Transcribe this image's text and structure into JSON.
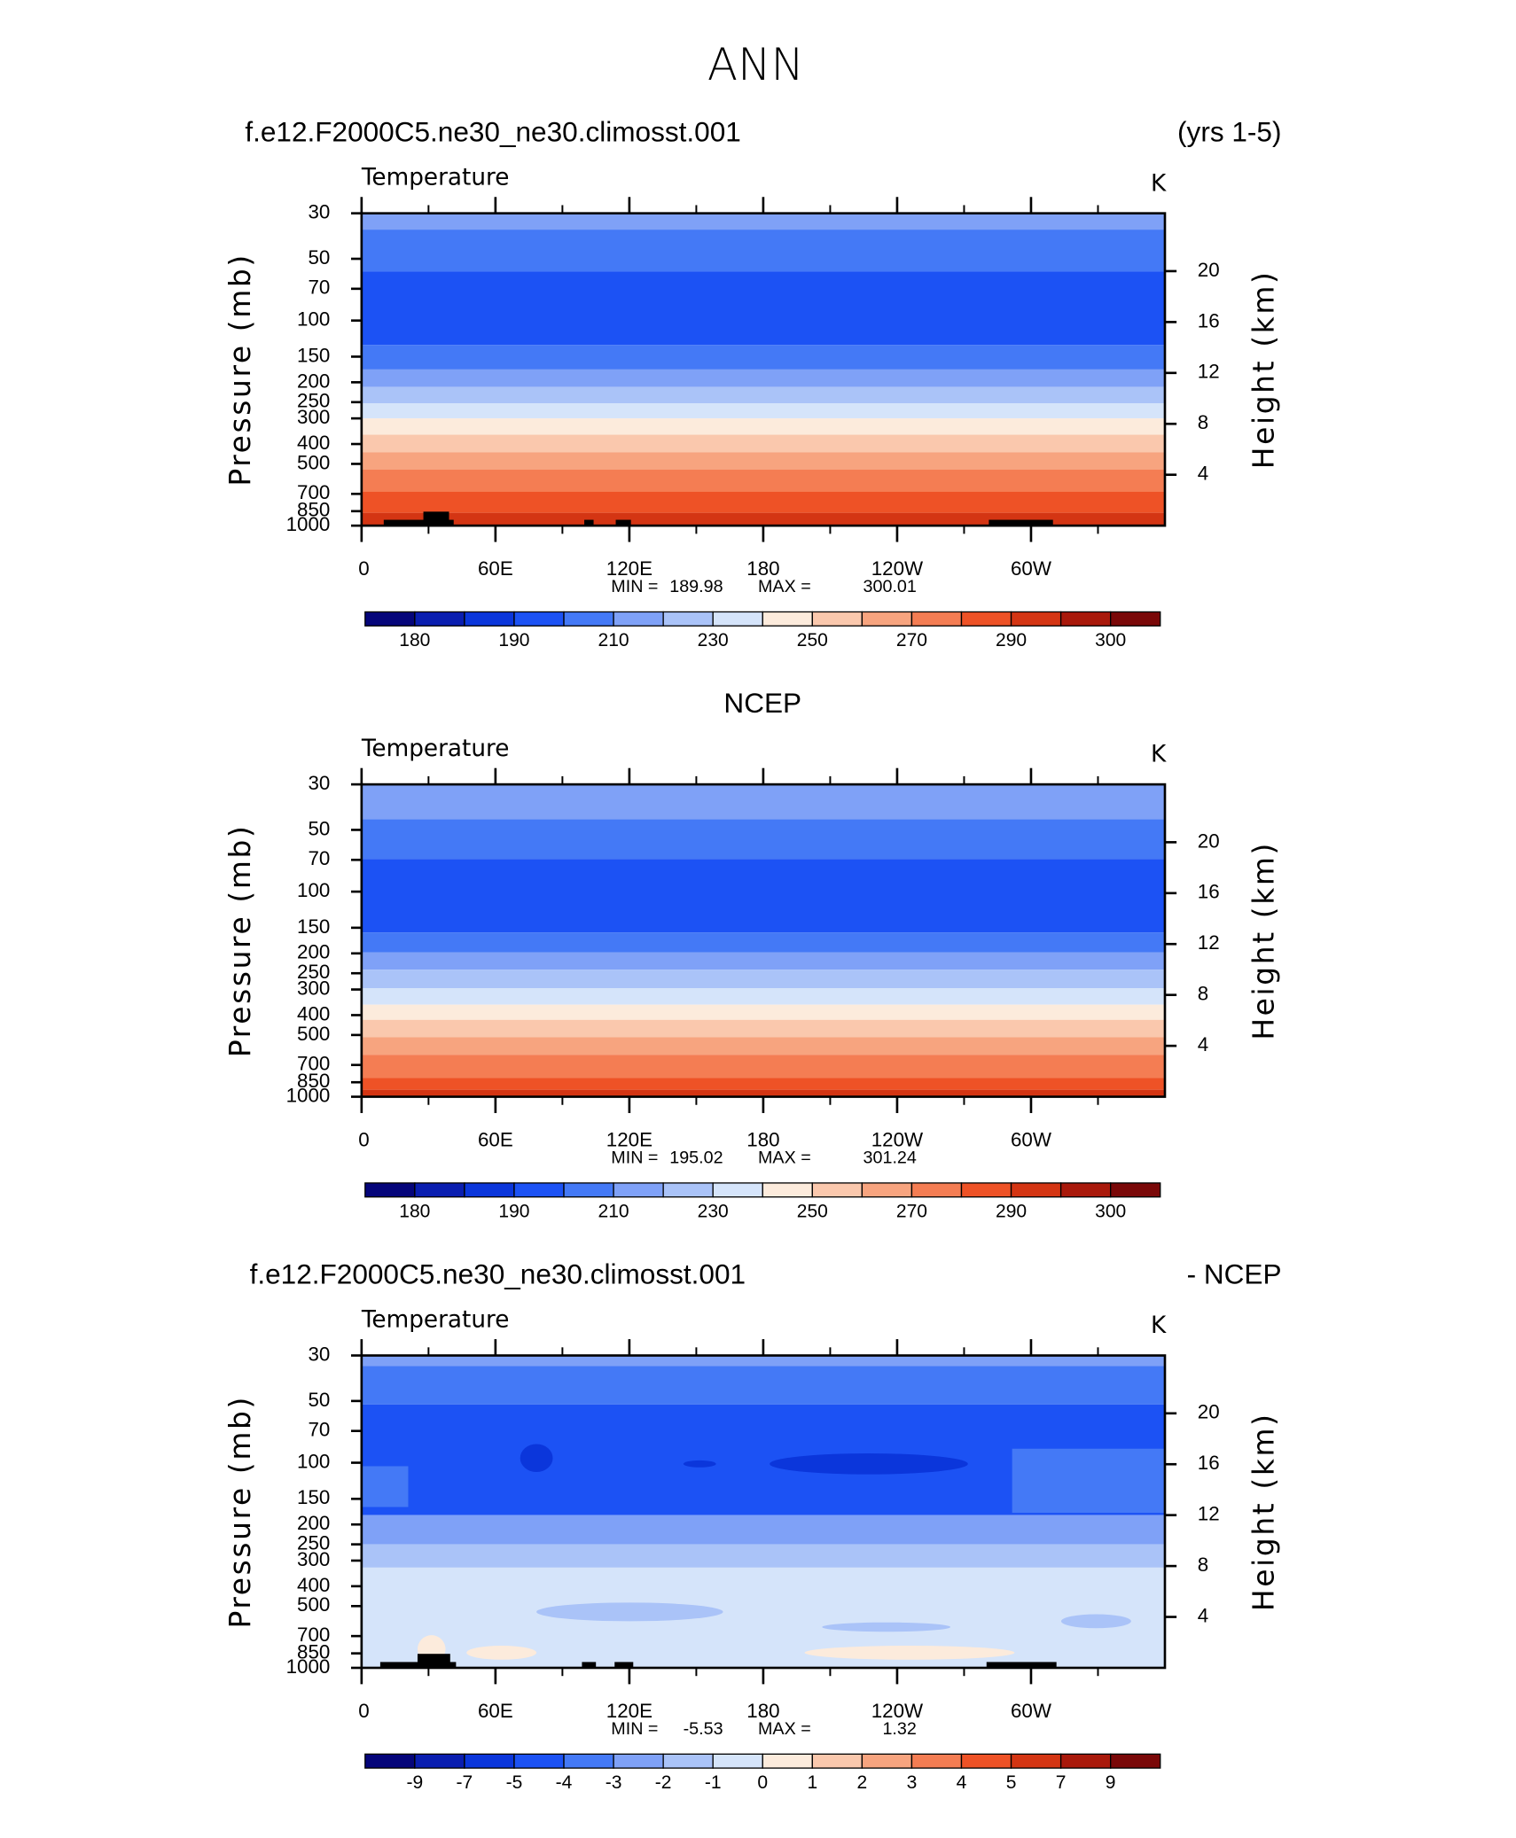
{
  "title": "ANN",
  "chart_data": [
    {
      "type": "contour",
      "title": "f.e12.F2000C5.ne30_ne30.climosst.001",
      "right_title": "(yrs 1-5)",
      "subtitle": "Temperature",
      "units": "K",
      "ylabel": "Pressure (mb)",
      "y2label": "Height (km)",
      "ylim": [
        30,
        1000
      ],
      "ylog": true,
      "yticks": [
        30,
        50,
        70,
        100,
        150,
        200,
        250,
        300,
        400,
        500,
        700,
        850,
        1000
      ],
      "y2ticks": [
        4,
        8,
        12,
        16,
        20
      ],
      "xlim": [
        0,
        360
      ],
      "xticks": [
        0,
        {
          "value": 60,
          "label": "60E"
        },
        {
          "value": 120,
          "label": "120E"
        },
        180,
        {
          "value": 240,
          "label": "120W"
        },
        {
          "value": 300,
          "label": "60W"
        }
      ],
      "stats": {
        "min_label": "MIN =",
        "min": 189.98,
        "max_label": "MAX =",
        "max": 300.01
      },
      "colorbar": {
        "colors": [
          "#05057a",
          "#0a1eb0",
          "#0b36db",
          "#1c52f4",
          "#4479f6",
          "#7fa1f7",
          "#aac3f8",
          "#d5e4fa",
          "#fcebdc",
          "#fac8ad",
          "#f7a47f",
          "#f47d53",
          "#ee5226",
          "#d43513",
          "#a9190b",
          "#7a0808"
        ],
        "levels": [
          180,
          null,
          190,
          null,
          210,
          null,
          230,
          null,
          250,
          null,
          270,
          null,
          290,
          null,
          300
        ]
      }
    },
    {
      "type": "contour",
      "center_title": "NCEP",
      "subtitle": "Temperature",
      "units": "K",
      "ylabel": "Pressure (mb)",
      "y2label": "Height (km)",
      "ylim": [
        30,
        1000
      ],
      "ylog": true,
      "yticks": [
        30,
        50,
        70,
        100,
        150,
        200,
        250,
        300,
        400,
        500,
        700,
        850,
        1000
      ],
      "y2ticks": [
        4,
        8,
        12,
        16,
        20
      ],
      "xlim": [
        0,
        360
      ],
      "xticks": [
        0,
        {
          "value": 60,
          "label": "60E"
        },
        {
          "value": 120,
          "label": "120E"
        },
        180,
        {
          "value": 240,
          "label": "120W"
        },
        {
          "value": 300,
          "label": "60W"
        }
      ],
      "stats": {
        "min_label": "MIN =",
        "min": 195.02,
        "max_label": "MAX =",
        "max": 301.24
      },
      "colorbar": {
        "colors": [
          "#05057a",
          "#0a1eb0",
          "#0b36db",
          "#1c52f4",
          "#4479f6",
          "#7fa1f7",
          "#aac3f8",
          "#d5e4fa",
          "#fcebdc",
          "#fac8ad",
          "#f7a47f",
          "#f47d53",
          "#ee5226",
          "#d43513",
          "#a9190b",
          "#7a0808"
        ],
        "levels": [
          180,
          null,
          190,
          null,
          210,
          null,
          230,
          null,
          250,
          null,
          270,
          null,
          290,
          null,
          300
        ]
      }
    },
    {
      "type": "contour",
      "title": "f.e12.F2000C5.ne30_ne30.climosst.001",
      "right_title": "- NCEP",
      "subtitle": "Temperature",
      "units": "K",
      "ylabel": "Pressure (mb)",
      "y2label": "Height (km)",
      "ylim": [
        30,
        1000
      ],
      "ylog": true,
      "yticks": [
        30,
        50,
        70,
        100,
        150,
        200,
        250,
        300,
        400,
        500,
        700,
        850,
        1000
      ],
      "y2ticks": [
        4,
        8,
        12,
        16,
        20
      ],
      "xlim": [
        0,
        360
      ],
      "xticks": [
        0,
        {
          "value": 60,
          "label": "60E"
        },
        {
          "value": 120,
          "label": "120E"
        },
        180,
        {
          "value": 240,
          "label": "120W"
        },
        {
          "value": 300,
          "label": "60W"
        }
      ],
      "stats": {
        "min_label": "MIN =",
        "min": -5.53,
        "max_label": "MAX =",
        "max": 1.32
      },
      "colorbar": {
        "colors": [
          "#05057a",
          "#0a1eb0",
          "#0b36db",
          "#1c52f4",
          "#4479f6",
          "#7fa1f7",
          "#aac3f8",
          "#d5e4fa",
          "#fcebdc",
          "#fac8ad",
          "#f7a47f",
          "#f47d53",
          "#ee5226",
          "#d43513",
          "#a9190b",
          "#7a0808"
        ],
        "levels": [
          -9,
          -7,
          -5,
          -4,
          -3,
          -2,
          -1,
          0,
          1,
          2,
          3,
          4,
          5,
          7,
          9
        ]
      }
    }
  ]
}
